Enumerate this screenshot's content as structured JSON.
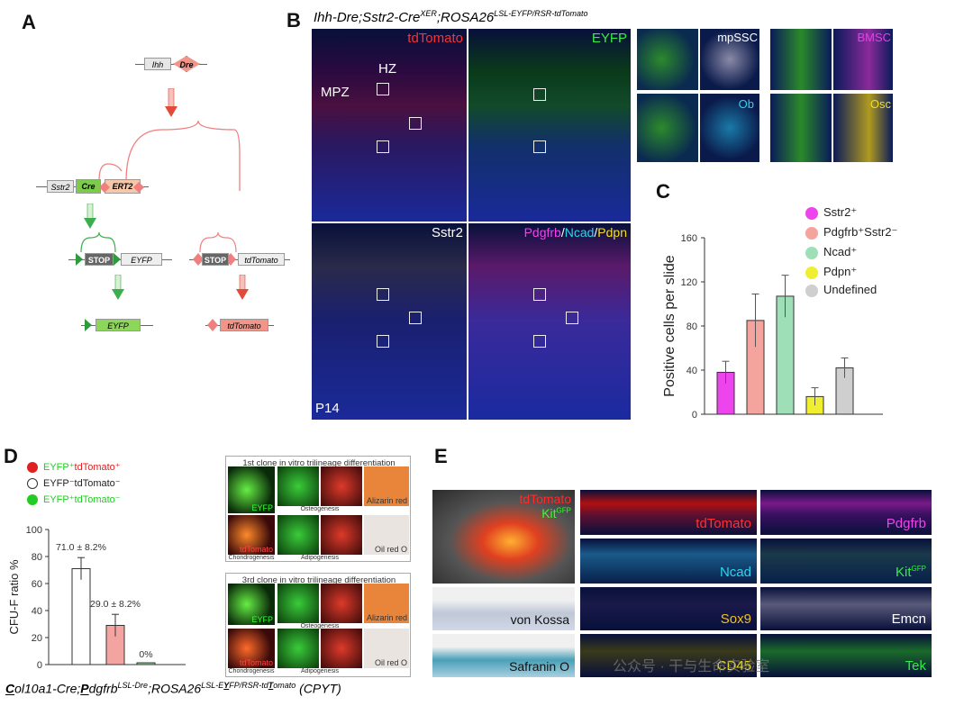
{
  "panel_labels": {
    "a": "A",
    "b": "B",
    "c": "C",
    "d": "D",
    "e": "E"
  },
  "panel_a": {
    "ihh": "Ihh",
    "dre": "Dre",
    "sstr2": "Sstr2",
    "cre": "Cre",
    "ert2": "ERT2",
    "stop1": "STOP",
    "eyfp": "EYFP",
    "stop2": "STOP",
    "tdtomato": "tdTomato",
    "eyfp_out": "EYFP",
    "tdtomato_out": "tdTomato"
  },
  "panel_b": {
    "title_main": "Ihh-Dre;Sstr2-Cre",
    "title_sup1": "XER",
    "title_mid": ";ROSA26",
    "title_sup2": "LSL-EYFP/RSR-tdTomato",
    "label_tdtomato": "tdTomato",
    "label_eyfp": "EYFP",
    "label_hz": "HZ",
    "label_mpz": "MPZ",
    "label_sstr2": "Sstr2",
    "label_pdgfrb": "Pdgfrb",
    "label_ncad": "Ncad",
    "label_pdpn": "Pdpn",
    "label_sep": "/",
    "label_p14": "P14",
    "inset_mpssc": "mpSSC",
    "inset_bmsc": "BMSC",
    "inset_ob": "Ob",
    "inset_osc": "Osc"
  },
  "colors": {
    "magenta": "#ee44ee",
    "salmon": "#f4a49c",
    "mint": "#9edfb8",
    "yellow": "#f0ee30",
    "grey": "#cfcfcf",
    "td": "#ff2a2a",
    "green": "#22dd44",
    "cyan": "#2ad4f0",
    "gold": "#f0c020"
  },
  "chart_c": {
    "type": "bar",
    "ylabel": "Positive cells per slide",
    "ylim": [
      0,
      160
    ],
    "yticks": [
      "0",
      "40",
      "80",
      "120",
      "160"
    ],
    "legend": [
      "Sstr2⁺",
      "Pdgfrb⁺Sstr2⁻",
      "Ncad⁺",
      "Pdpn⁺",
      "Undefined"
    ],
    "values": [
      38,
      85,
      107,
      16,
      42
    ],
    "errors": [
      10,
      24,
      19,
      8,
      9
    ]
  },
  "panel_d": {
    "legend": [
      "EYFP⁺tdTomato⁺",
      "EYFP⁻tdTomato⁻",
      "EYFP⁺tdTomato⁻"
    ],
    "legend_red_part": "tdTomato⁺",
    "ylabel": "CFU-F ratio %",
    "ylim": [
      0,
      100
    ],
    "yticks": [
      "0",
      "20",
      "40",
      "60",
      "80",
      "100"
    ],
    "values": [
      71.0,
      29.0,
      0
    ],
    "errors": [
      8.2,
      8.2,
      0
    ],
    "bar_labels": [
      "71.0 ± 8.2%",
      "29.0 ± 8.2%",
      "0%"
    ],
    "clone1_title": "1st clone in vitro trilineage differentiation",
    "clone3_title": "3rd clone in vitro trilineage differentiation",
    "chondrogenesis": "Chondrogenesis",
    "osteogenesis": "Osteogenesis",
    "adipogenesis": "Adipogenesis",
    "alizarin": "Alizarin red",
    "oilred": "Oil red O",
    "eyfp": "EYFP",
    "tdtomato": "tdTomato",
    "genotype_c": "C",
    "genotype_1": "ol10a1-Cre;",
    "genotype_p": "P",
    "genotype_2": "dgfrb",
    "genotype_sup1": "LSL-Dre",
    "genotype_3": ";ROSA26",
    "genotype_sup2a": "LSL-E",
    "genotype_sup2b": "Y",
    "genotype_sup2c": "FP/RSR-td",
    "genotype_sup2d": "T",
    "genotype_sup2e": "omato",
    "genotype_abbr": "(CPYT)"
  },
  "panel_e": {
    "overlay_td": "tdTomato",
    "overlay_kit": "Kit",
    "overlay_kit_sup": "GFP",
    "vonkossa": "von Kossa",
    "safranin": "Safranin O",
    "tdtomato": "tdTomato",
    "pdgfrb": "Pdgfrb",
    "ncad": "Ncad",
    "kit": "Kit",
    "kit_sup": "GFP",
    "sox9": "Sox9",
    "emcn": "Emcn",
    "cd45": "CD45",
    "tek": "Tek"
  },
  "watermark": "公众号 · 干与生命实验室"
}
